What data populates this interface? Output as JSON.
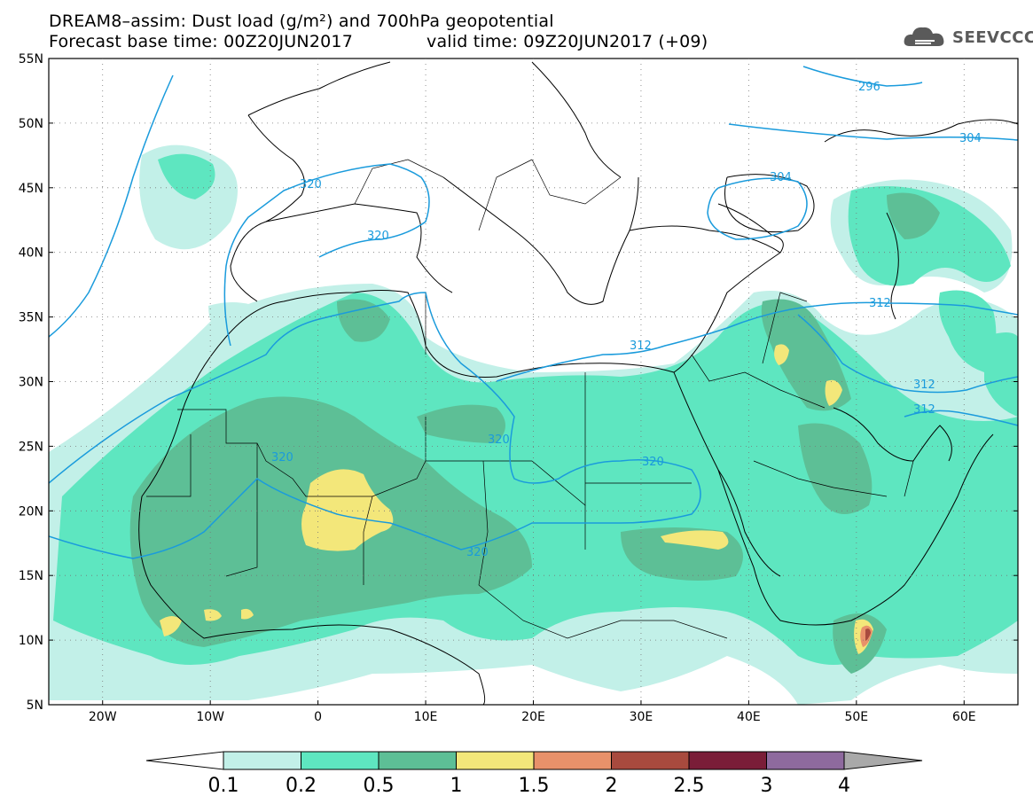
{
  "header": {
    "title_line1": "DREAM8–assim: Dust load (g/m²) and 700hPa geopotential",
    "title_line2": "Forecast base time: 00Z20JUN2017",
    "valid_time": "valid time: 09Z20JUN2017 (+09)"
  },
  "logo": {
    "text": "SEEVCCC",
    "icon": "cloud-icon"
  },
  "map": {
    "lat_labels": [
      "55N",
      "50N",
      "45N",
      "40N",
      "35N",
      "30N",
      "25N",
      "20N",
      "15N",
      "10N",
      "5N"
    ],
    "lon_labels": [
      "20W",
      "10W",
      "0",
      "10E",
      "20E",
      "30E",
      "40E",
      "50E",
      "60E"
    ],
    "contour_labels": [
      "296",
      "304",
      "304",
      "312",
      "312",
      "312",
      "312",
      "320",
      "320",
      "320",
      "320",
      "320",
      "320"
    ]
  },
  "legend": {
    "colors": [
      "#c2f0e8",
      "#5ee6c0",
      "#5dbf96",
      "#f3e77a",
      "#e8916a",
      "#a84a3e",
      "#7a1d38",
      "#8e6a9e",
      "#a9a9a9"
    ],
    "labels": [
      "0.1",
      "0.2",
      "0.5",
      "1",
      "1.5",
      "2",
      "2.5",
      "3",
      "4"
    ]
  }
}
